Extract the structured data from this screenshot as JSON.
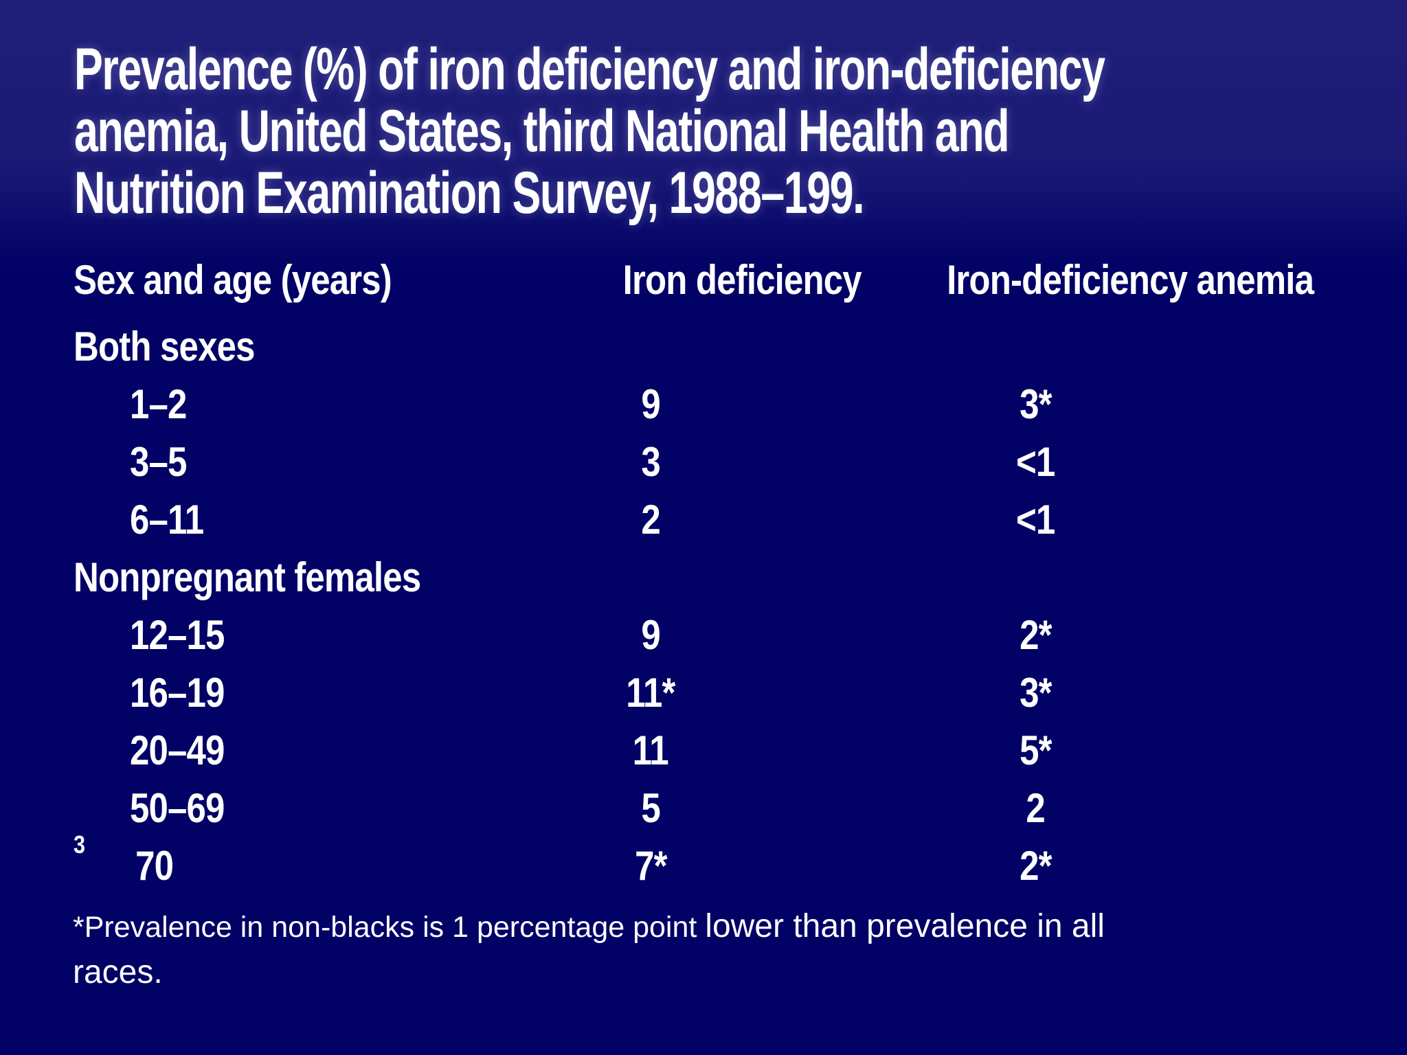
{
  "slide": {
    "background_color": "#010166",
    "text_color": "#ffffff",
    "title_lines": {
      "0": "Prevalence (%) of iron deficiency and iron-deficiency",
      "1": "anemia, United States, third National Health and",
      "2": "Nutrition Examination Survey, 1988–199."
    }
  },
  "table": {
    "columns": {
      "0": "Sex and age (years)",
      "1": "Iron deficiency",
      "2": "Iron-deficiency anemia"
    },
    "groups": [
      {
        "label": "Both sexes",
        "rows": [
          {
            "age": "1–2",
            "iron_deficiency": "9",
            "iron_deficiency_anemia": "3*"
          },
          {
            "age": "3–5",
            "iron_deficiency": "3",
            "iron_deficiency_anemia": "<1"
          },
          {
            "age": "6–11",
            "iron_deficiency": "2",
            "iron_deficiency_anemia": "<1"
          }
        ]
      },
      {
        "label": "Nonpregnant females",
        "rows": [
          {
            "age": "12–15",
            "iron_deficiency": "9",
            "iron_deficiency_anemia": "2*"
          },
          {
            "age": "16–19",
            "iron_deficiency": "11*",
            "iron_deficiency_anemia": "3*"
          },
          {
            "age": "20–49",
            "iron_deficiency": "11",
            "iron_deficiency_anemia": "5*"
          },
          {
            "age": "50–69",
            "iron_deficiency": "5",
            "iron_deficiency_anemia": "2"
          },
          {
            "age_sup": "3",
            "age": "70",
            "iron_deficiency": "7*",
            "iron_deficiency_anemia": "2*"
          }
        ]
      }
    ]
  },
  "footnote": {
    "part1": "*Prevalence in non-blacks is 1 percentage point ",
    "part2_line1": "lower than prevalence in all",
    "part2_line2": "races."
  }
}
